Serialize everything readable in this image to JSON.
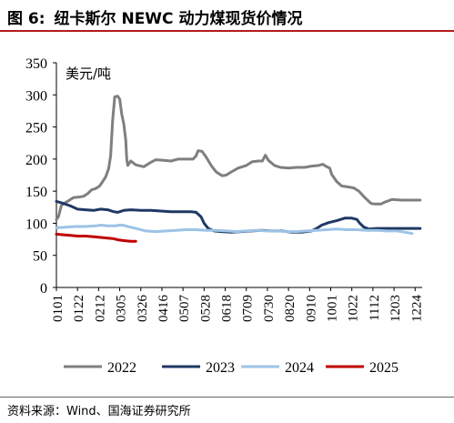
{
  "figure": {
    "number": "图 6:",
    "title": "纽卡斯尔 NEWC 动力煤现货价情况",
    "source": "资料来源：Wind、国海证券研究所"
  },
  "chart_data": {
    "type": "line",
    "unit_label": "美元/吨",
    "ylim": [
      0,
      350
    ],
    "yticks": [
      0,
      50,
      100,
      150,
      200,
      250,
      300,
      350
    ],
    "xlim": [
      1,
      365
    ],
    "xticks": [
      {
        "label": "0101",
        "day": 1
      },
      {
        "label": "0122",
        "day": 22
      },
      {
        "label": "0212",
        "day": 43
      },
      {
        "label": "0305",
        "day": 64
      },
      {
        "label": "0326",
        "day": 85
      },
      {
        "label": "0416",
        "day": 106
      },
      {
        "label": "0507",
        "day": 127
      },
      {
        "label": "0528",
        "day": 148
      },
      {
        "label": "0618",
        "day": 169
      },
      {
        "label": "0709",
        "day": 190
      },
      {
        "label": "0730",
        "day": 211
      },
      {
        "label": "0820",
        "day": 232
      },
      {
        "label": "0910",
        "day": 253
      },
      {
        "label": "1001",
        "day": 274
      },
      {
        "label": "1022",
        "day": 295
      },
      {
        "label": "1112",
        "day": 316
      },
      {
        "label": "1203",
        "day": 337
      },
      {
        "label": "1224",
        "day": 358
      }
    ],
    "legend_position": "bottom",
    "series": [
      {
        "name": "2022",
        "color": "#7f7f7f",
        "points": [
          [
            1,
            106
          ],
          [
            3,
            110
          ],
          [
            6,
            128
          ],
          [
            10,
            132
          ],
          [
            14,
            136
          ],
          [
            18,
            140
          ],
          [
            24,
            141
          ],
          [
            28,
            142
          ],
          [
            32,
            146
          ],
          [
            36,
            152
          ],
          [
            40,
            154
          ],
          [
            44,
            158
          ],
          [
            47,
            165
          ],
          [
            50,
            172
          ],
          [
            53,
            185
          ],
          [
            55,
            205
          ],
          [
            57,
            260
          ],
          [
            59,
            297
          ],
          [
            62,
            298
          ],
          [
            64,
            293
          ],
          [
            66,
            270
          ],
          [
            68,
            255
          ],
          [
            70,
            230
          ],
          [
            71,
            200
          ],
          [
            72,
            190
          ],
          [
            75,
            197
          ],
          [
            80,
            191
          ],
          [
            88,
            188
          ],
          [
            95,
            195
          ],
          [
            100,
            199
          ],
          [
            108,
            198
          ],
          [
            115,
            197
          ],
          [
            122,
            200
          ],
          [
            130,
            200
          ],
          [
            137,
            200
          ],
          [
            140,
            205
          ],
          [
            142,
            213
          ],
          [
            146,
            212
          ],
          [
            150,
            203
          ],
          [
            155,
            190
          ],
          [
            160,
            180
          ],
          [
            166,
            174
          ],
          [
            170,
            175
          ],
          [
            175,
            180
          ],
          [
            182,
            186
          ],
          [
            190,
            190
          ],
          [
            196,
            196
          ],
          [
            202,
            197
          ],
          [
            206,
            197
          ],
          [
            209,
            206
          ],
          [
            212,
            198
          ],
          [
            218,
            190
          ],
          [
            224,
            187
          ],
          [
            232,
            186
          ],
          [
            240,
            187
          ],
          [
            248,
            187
          ],
          [
            255,
            189
          ],
          [
            262,
            190
          ],
          [
            266,
            192
          ],
          [
            270,
            188
          ],
          [
            273,
            186
          ],
          [
            275,
            176
          ],
          [
            280,
            165
          ],
          [
            285,
            158
          ],
          [
            290,
            157
          ],
          [
            297,
            155
          ],
          [
            302,
            150
          ],
          [
            308,
            140
          ],
          [
            314,
            131
          ],
          [
            318,
            130
          ],
          [
            324,
            130
          ],
          [
            328,
            133
          ],
          [
            335,
            137
          ],
          [
            345,
            136
          ],
          [
            358,
            136
          ],
          [
            363,
            136
          ]
        ]
      },
      {
        "name": "2023",
        "color": "#1f3864",
        "points": [
          [
            1,
            134
          ],
          [
            8,
            131
          ],
          [
            15,
            127
          ],
          [
            22,
            122
          ],
          [
            30,
            121
          ],
          [
            38,
            120
          ],
          [
            45,
            122
          ],
          [
            52,
            121
          ],
          [
            58,
            118
          ],
          [
            62,
            117
          ],
          [
            68,
            120
          ],
          [
            75,
            121
          ],
          [
            85,
            120
          ],
          [
            95,
            120
          ],
          [
            105,
            119
          ],
          [
            115,
            118
          ],
          [
            125,
            118
          ],
          [
            135,
            118
          ],
          [
            140,
            117
          ],
          [
            145,
            110
          ],
          [
            148,
            100
          ],
          [
            152,
            92
          ],
          [
            158,
            88
          ],
          [
            165,
            87
          ],
          [
            175,
            86
          ],
          [
            185,
            87
          ],
          [
            195,
            88
          ],
          [
            205,
            89
          ],
          [
            215,
            88
          ],
          [
            225,
            88
          ],
          [
            235,
            86
          ],
          [
            245,
            86
          ],
          [
            255,
            88
          ],
          [
            260,
            92
          ],
          [
            265,
            97
          ],
          [
            272,
            101
          ],
          [
            280,
            104
          ],
          [
            288,
            108
          ],
          [
            295,
            108
          ],
          [
            300,
            106
          ],
          [
            303,
            100
          ],
          [
            307,
            94
          ],
          [
            312,
            91
          ],
          [
            320,
            92
          ],
          [
            330,
            92
          ],
          [
            340,
            92
          ],
          [
            350,
            92
          ],
          [
            358,
            92
          ],
          [
            363,
            92
          ]
        ]
      },
      {
        "name": "2024",
        "color": "#9dc3e6",
        "points": [
          [
            1,
            93
          ],
          [
            10,
            94
          ],
          [
            20,
            95
          ],
          [
            30,
            95
          ],
          [
            40,
            96
          ],
          [
            45,
            97
          ],
          [
            52,
            96
          ],
          [
            60,
            96
          ],
          [
            63,
            97
          ],
          [
            67,
            97
          ],
          [
            72,
            95
          ],
          [
            80,
            92
          ],
          [
            90,
            88
          ],
          [
            100,
            87
          ],
          [
            110,
            88
          ],
          [
            120,
            89
          ],
          [
            130,
            90
          ],
          [
            140,
            90
          ],
          [
            150,
            89
          ],
          [
            160,
            89
          ],
          [
            170,
            88
          ],
          [
            180,
            87
          ],
          [
            190,
            88
          ],
          [
            200,
            89
          ],
          [
            210,
            88
          ],
          [
            220,
            88
          ],
          [
            230,
            87
          ],
          [
            240,
            87
          ],
          [
            250,
            88
          ],
          [
            260,
            89
          ],
          [
            270,
            90
          ],
          [
            280,
            91
          ],
          [
            290,
            90
          ],
          [
            300,
            90
          ],
          [
            310,
            89
          ],
          [
            320,
            89
          ],
          [
            330,
            88
          ],
          [
            340,
            88
          ],
          [
            348,
            86
          ],
          [
            355,
            84
          ]
        ]
      },
      {
        "name": "2025",
        "color": "#c00000",
        "points": [
          [
            1,
            83
          ],
          [
            8,
            82
          ],
          [
            15,
            81
          ],
          [
            22,
            80
          ],
          [
            30,
            80
          ],
          [
            38,
            79
          ],
          [
            45,
            78
          ],
          [
            52,
            77
          ],
          [
            58,
            76
          ],
          [
            63,
            74
          ],
          [
            68,
            73
          ],
          [
            75,
            72
          ],
          [
            80,
            72
          ]
        ]
      }
    ]
  }
}
